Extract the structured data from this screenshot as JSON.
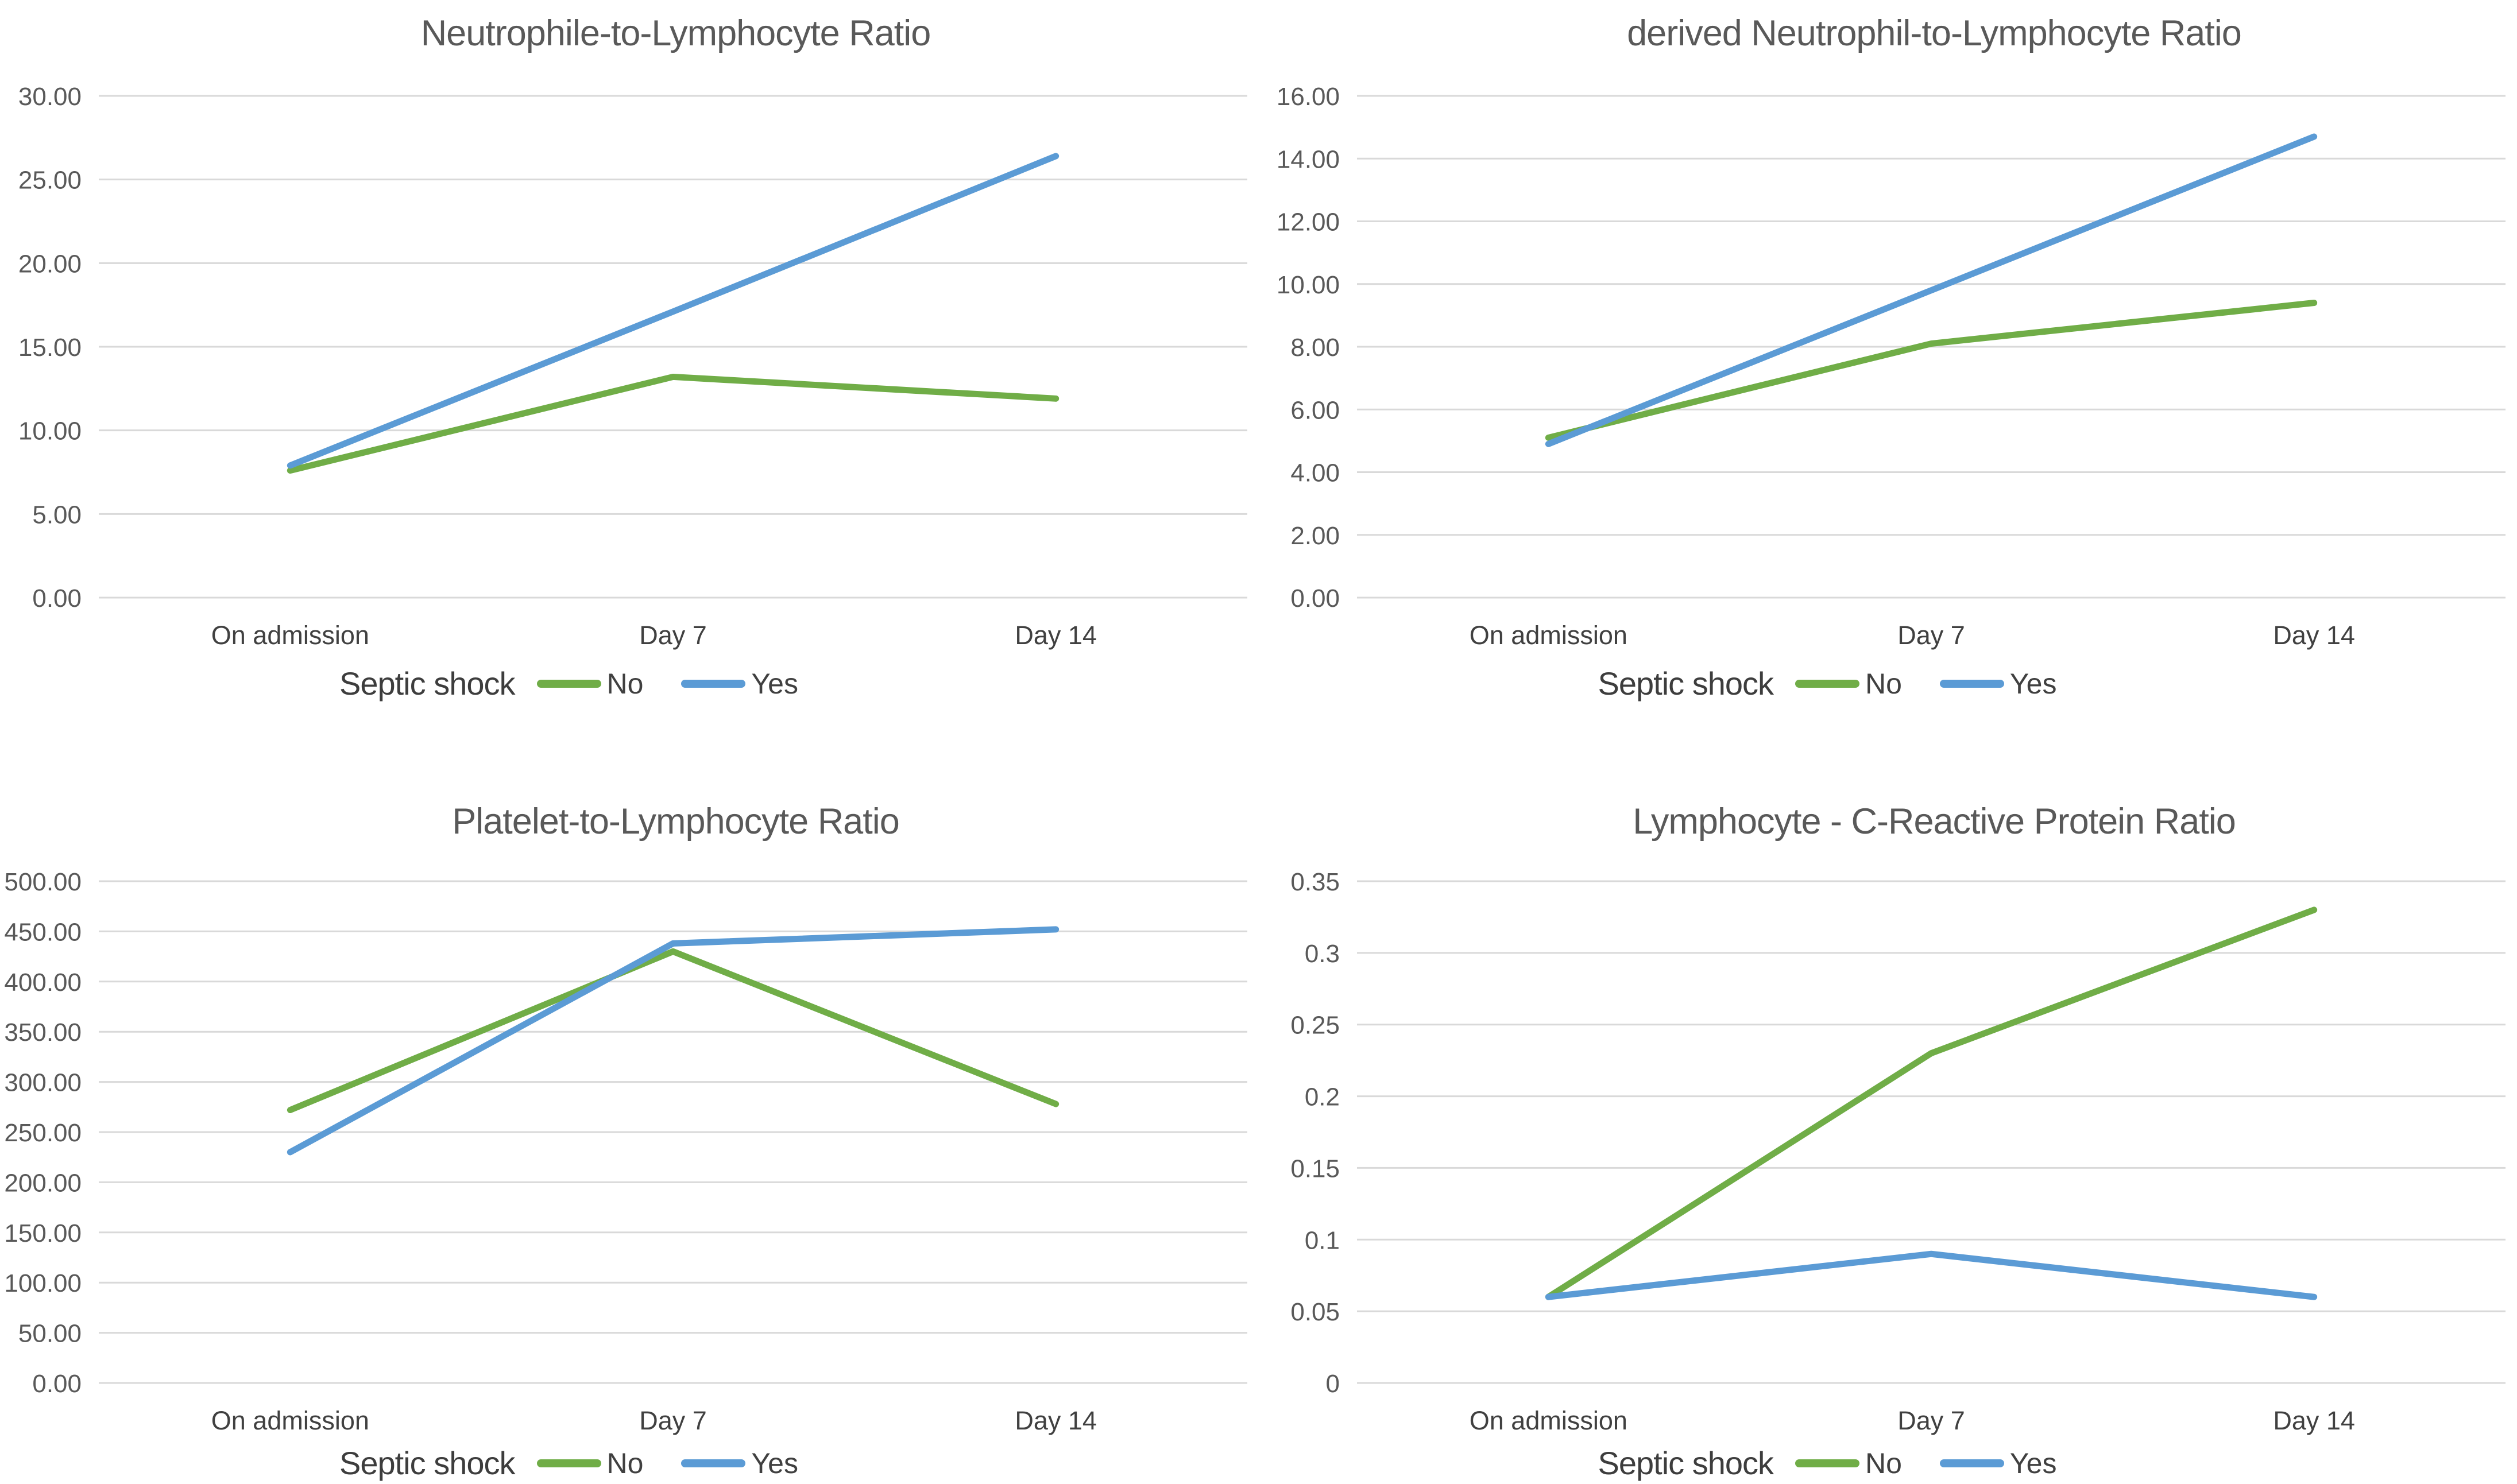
{
  "page": {
    "background": "#FFFFFF"
  },
  "colors": {
    "series_no": "#70AD47",
    "series_yes": "#5B9BD5",
    "gridline": "#D9D9D9",
    "title_text": "#595959",
    "ytick_text": "#595959",
    "xtick_text": "#404040"
  },
  "legend": {
    "title": "Septic shock",
    "items": [
      {
        "label": "No",
        "color": "#70AD47"
      },
      {
        "label": "Yes",
        "color": "#5B9BD5"
      }
    ]
  },
  "chart_data": [
    {
      "type": "line",
      "title": "Neutrophile-to-Lymphocyte Ratio",
      "categories": [
        "On admission",
        "Day 7",
        "Day 14"
      ],
      "ylim": [
        0,
        30
      ],
      "grid": true,
      "legend_position": "bottom",
      "ytick_values": [
        0,
        5,
        10,
        15,
        20,
        25,
        30
      ],
      "ytick_labels": [
        "0.00",
        "5.00",
        "10.00",
        "15.00",
        "20.00",
        "25.00",
        "30.00"
      ],
      "series": [
        {
          "name": "No",
          "color": "series_no",
          "values": [
            7.6,
            13.2,
            11.9
          ]
        },
        {
          "name": "Yes",
          "color": "series_yes",
          "values": [
            7.9,
            17.1,
            26.4
          ]
        }
      ]
    },
    {
      "type": "line",
      "title": "derived Neutrophil-to-Lymphocyte Ratio",
      "categories": [
        "On admission",
        "Day 7",
        "Day 14"
      ],
      "ylim": [
        0,
        16
      ],
      "grid": true,
      "legend_position": "bottom",
      "ytick_values": [
        0,
        2,
        4,
        6,
        8,
        10,
        12,
        14,
        16
      ],
      "ytick_labels": [
        "0.00",
        "2.00",
        "4.00",
        "6.00",
        "8.00",
        "10.00",
        "12.00",
        "14.00",
        "16.00"
      ],
      "series": [
        {
          "name": "No",
          "color": "series_no",
          "values": [
            5.1,
            8.1,
            9.4
          ]
        },
        {
          "name": "Yes",
          "color": "series_yes",
          "values": [
            4.9,
            9.8,
            14.7
          ]
        }
      ]
    },
    {
      "type": "line",
      "title": "Platelet-to-Lymphocyte Ratio",
      "categories": [
        "On admission",
        "Day 7",
        "Day 14"
      ],
      "ylim": [
        0,
        500
      ],
      "grid": true,
      "legend_position": "bottom",
      "ytick_values": [
        0,
        50,
        100,
        150,
        200,
        250,
        300,
        350,
        400,
        450,
        500
      ],
      "ytick_labels": [
        "0.00",
        "50.00",
        "100.00",
        "150.00",
        "200.00",
        "250.00",
        "300.00",
        "350.00",
        "400.00",
        "450.00",
        "500.00"
      ],
      "series": [
        {
          "name": "No",
          "color": "series_no",
          "values": [
            272,
            430,
            278
          ]
        },
        {
          "name": "Yes",
          "color": "series_yes",
          "values": [
            230,
            438,
            452
          ]
        }
      ]
    },
    {
      "type": "line",
      "title": "Lymphocyte - C-Reactive Protein Ratio",
      "categories": [
        "On admission",
        "Day 7",
        "Day 14"
      ],
      "ylim": [
        0,
        0.35
      ],
      "grid": true,
      "legend_position": "bottom",
      "ytick_values": [
        0,
        0.05,
        0.1,
        0.15,
        0.2,
        0.25,
        0.3,
        0.35
      ],
      "ytick_labels": [
        "0",
        "0.05",
        "0.1",
        "0.15",
        "0.2",
        "0.25",
        "0.3",
        "0.35"
      ],
      "series": [
        {
          "name": "No",
          "color": "series_no",
          "values": [
            0.06,
            0.23,
            0.33
          ]
        },
        {
          "name": "Yes",
          "color": "series_yes",
          "values": [
            0.06,
            0.09,
            0.06
          ]
        }
      ]
    }
  ]
}
